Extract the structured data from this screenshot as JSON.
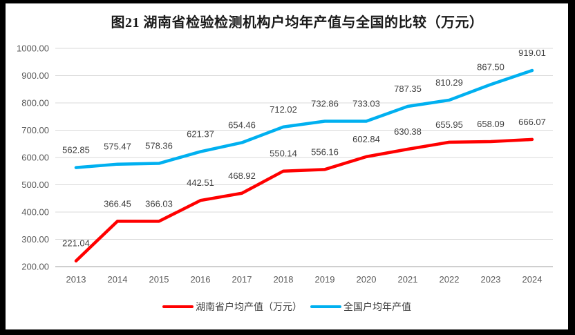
{
  "chart_data": {
    "type": "line",
    "title": "图21 湖南省检验检测机构户均年产值与全国的比较（万元）",
    "categories": [
      "2013",
      "2014",
      "2015",
      "2016",
      "2017",
      "2018",
      "2019",
      "2020",
      "2021",
      "2022",
      "2023",
      "2024"
    ],
    "series": [
      {
        "name": "湖南省户均产值（万元）",
        "color": "#FF0000",
        "values": [
          221.04,
          366.45,
          366.03,
          442.51,
          468.92,
          550.14,
          556.16,
          602.84,
          630.38,
          655.95,
          658.09,
          666.07
        ]
      },
      {
        "name": "全国户均年产值",
        "color": "#00B0F0",
        "values": [
          562.85,
          575.47,
          578.36,
          621.37,
          654.46,
          712.02,
          732.86,
          733.03,
          787.35,
          810.29,
          867.5,
          919.01
        ]
      }
    ],
    "xlabel": "",
    "ylabel": "",
    "ylim": [
      200,
      1000
    ],
    "ytick_step": 100,
    "ytick_decimals": 2,
    "data_label_decimals": 2,
    "grid": true,
    "legend_position": "bottom",
    "styles": {
      "grid_color": "#D9D9D9",
      "axis_color": "#BFBFBF",
      "tick_color": "#595959",
      "data_label_color": "#404040",
      "frame_color": "#000000",
      "background": "#FFFFFF"
    }
  }
}
